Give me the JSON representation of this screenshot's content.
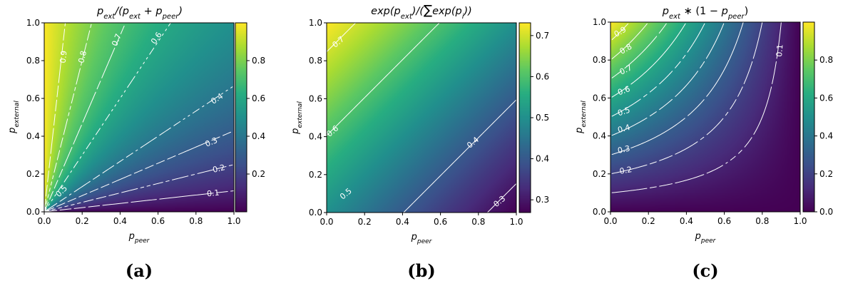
{
  "chart_data": [
    {
      "type": "heatmap",
      "panel_label": "(a)",
      "title_parts": [
        "p",
        "ext",
        "/(",
        "p",
        "ext",
        " + ",
        "p",
        "peer",
        ")"
      ],
      "xlabel": [
        "p",
        "peer"
      ],
      "ylabel": [
        "p",
        "external"
      ],
      "xlim": [
        0,
        1
      ],
      "ylim": [
        0,
        1
      ],
      "xticks": [
        "0.0",
        "0.2",
        "0.4",
        "0.6",
        "0.8",
        "1.0"
      ],
      "yticks": [
        "0.0",
        "0.2",
        "0.4",
        "0.6",
        "0.8",
        "1.0"
      ],
      "colorbar": {
        "min": 0.0,
        "max": 1.0,
        "ticks": [
          0.2,
          0.4,
          0.6,
          0.8
        ],
        "tick_labels": [
          "0.2",
          "0.4",
          "0.6",
          "0.8"
        ]
      },
      "contour_levels": [
        0.1,
        0.2,
        0.3,
        0.4,
        0.5,
        0.6,
        0.7,
        0.8,
        0.9
      ],
      "contour_labels": [
        {
          "text": "0.9",
          "x": 0.1,
          "y": 0.82,
          "rot": -84
        },
        {
          "text": "0.8",
          "x": 0.2,
          "y": 0.82,
          "rot": -76
        },
        {
          "text": "0.7",
          "x": 0.38,
          "y": 0.91,
          "rot": -67
        },
        {
          "text": "0.6",
          "x": 0.59,
          "y": 0.92,
          "rot": -56
        },
        {
          "text": "0.4",
          "x": 0.91,
          "y": 0.6,
          "rot": -34
        },
        {
          "text": "0.3",
          "x": 0.88,
          "y": 0.37,
          "rot": -23
        },
        {
          "text": "0.2",
          "x": 0.92,
          "y": 0.23,
          "rot": -14
        },
        {
          "text": "0.1",
          "x": 0.89,
          "y": 0.1,
          "rot": -6
        },
        {
          "text": "0.5",
          "x": 0.09,
          "y": 0.11,
          "rot": -45
        }
      ]
    },
    {
      "type": "heatmap",
      "panel_label": "(b)",
      "title_parts": [
        "exp(",
        "p",
        "ext",
        ")/(",
        "∑",
        "exp(",
        "p",
        "i",
        "))"
      ],
      "xlabel": [
        "p",
        "peer"
      ],
      "ylabel": [
        "p",
        "external"
      ],
      "xlim": [
        0,
        1
      ],
      "ylim": [
        0,
        1
      ],
      "xticks": [
        "0.0",
        "0.2",
        "0.4",
        "0.6",
        "0.8",
        "1.0"
      ],
      "yticks": [
        "0.0",
        "0.2",
        "0.4",
        "0.6",
        "0.8",
        "1.0"
      ],
      "colorbar": {
        "min": 0.269,
        "max": 0.731,
        "ticks": [
          0.3,
          0.4,
          0.5,
          0.6,
          0.7
        ],
        "tick_labels": [
          "0.3",
          "0.4",
          "0.5",
          "0.6",
          "0.7"
        ]
      },
      "contour_levels": [
        0.3,
        0.4,
        0.5,
        0.6,
        0.7
      ],
      "contour_labels": [
        {
          "text": "0.7",
          "x": 0.06,
          "y": 0.9,
          "rot": -40
        },
        {
          "text": "0.6",
          "x": 0.03,
          "y": 0.43,
          "rot": -40
        },
        {
          "text": "0.5",
          "x": 0.1,
          "y": 0.1,
          "rot": -40
        },
        {
          "text": "0.4",
          "x": 0.77,
          "y": 0.37,
          "rot": -40
        },
        {
          "text": "0.3",
          "x": 0.91,
          "y": 0.06,
          "rot": -40
        }
      ]
    },
    {
      "type": "heatmap",
      "panel_label": "(c)",
      "title_parts": [
        "p",
        "ext",
        " ∗ (1 − ",
        "p",
        "peer",
        ")"
      ],
      "xlabel": [
        "p",
        "peer"
      ],
      "ylabel": [
        "p",
        "external"
      ],
      "xlim": [
        0,
        1
      ],
      "ylim": [
        0,
        1
      ],
      "xticks": [
        "0.0",
        "0.2",
        "0.4",
        "0.6",
        "0.8",
        "1.0"
      ],
      "yticks": [
        "0.0",
        "0.2",
        "0.4",
        "0.6",
        "0.8",
        "1.0"
      ],
      "colorbar": {
        "min": 0.0,
        "max": 1.0,
        "ticks": [
          0.0,
          0.2,
          0.4,
          0.6,
          0.8
        ],
        "tick_labels": [
          "0.0",
          "0.2",
          "0.4",
          "0.6",
          "0.8"
        ]
      },
      "contour_levels": [
        0.1,
        0.2,
        0.3,
        0.4,
        0.5,
        0.6,
        0.7,
        0.8,
        0.9
      ],
      "contour_labels": [
        {
          "text": "0.9",
          "x": 0.05,
          "y": 0.95,
          "rot": -30
        },
        {
          "text": "0.8",
          "x": 0.08,
          "y": 0.86,
          "rot": -30
        },
        {
          "text": "0.7",
          "x": 0.08,
          "y": 0.75,
          "rot": -25
        },
        {
          "text": "0.6",
          "x": 0.07,
          "y": 0.64,
          "rot": -20
        },
        {
          "text": "0.5",
          "x": 0.07,
          "y": 0.53,
          "rot": -18
        },
        {
          "text": "0.4",
          "x": 0.07,
          "y": 0.44,
          "rot": -15
        },
        {
          "text": "0.3",
          "x": 0.07,
          "y": 0.33,
          "rot": -12
        },
        {
          "text": "0.2",
          "x": 0.08,
          "y": 0.22,
          "rot": -10
        },
        {
          "text": "0.1",
          "x": 0.89,
          "y": 0.85,
          "rot": -85
        }
      ]
    }
  ]
}
